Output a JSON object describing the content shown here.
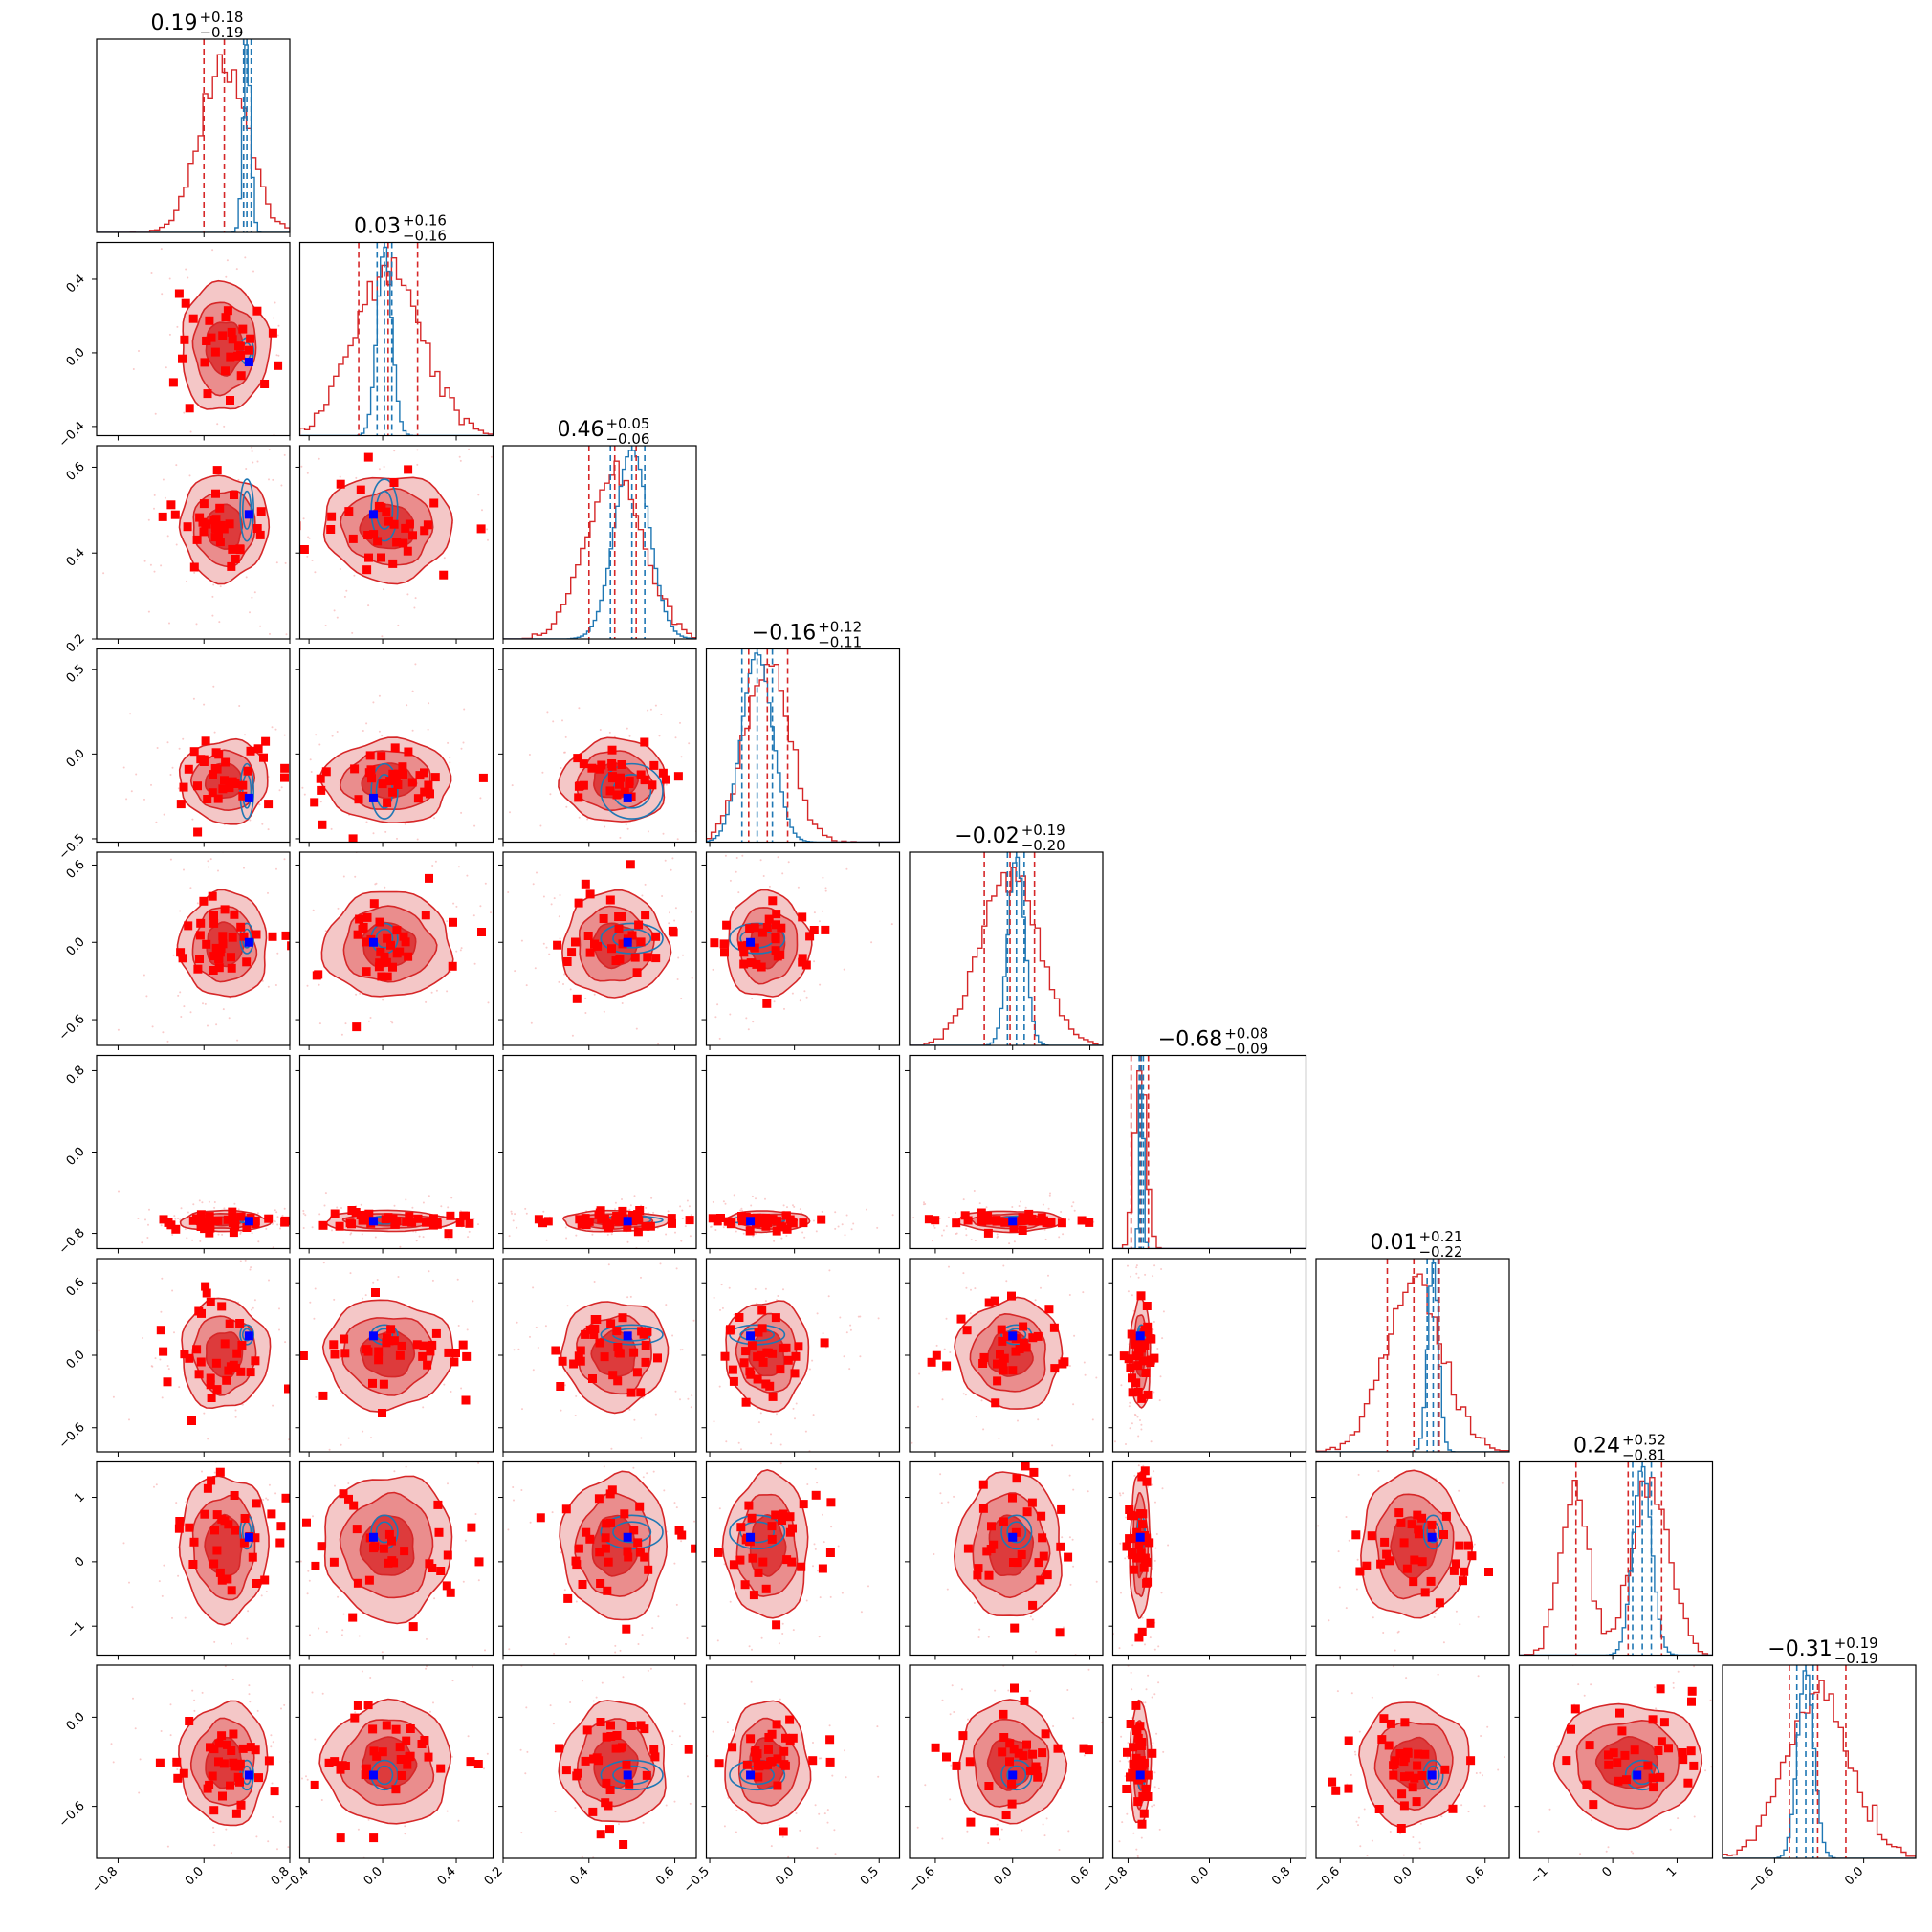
{
  "colors": {
    "primary": "#d62728",
    "primary_fill_outer": "#f4c7c7",
    "primary_fill_mid": "#ea8d8d",
    "primary_fill_inner": "#dd3b3c",
    "comparison": "#1f77b4",
    "truth": "#0000ff",
    "samples": "#ff0000"
  },
  "chart_data": {
    "type": "corner",
    "n_params": 9,
    "titles": [
      {
        "median": "0.19",
        "plus": "+0.18",
        "minus": "−0.19"
      },
      {
        "median": "0.03",
        "plus": "+0.16",
        "minus": "−0.16"
      },
      {
        "median": "0.46",
        "plus": "+0.05",
        "minus": "−0.06"
      },
      {
        "median": "−0.16",
        "plus": "+0.12",
        "minus": "−0.11"
      },
      {
        "median": "−0.02",
        "plus": "+0.19",
        "minus": "−0.20"
      },
      {
        "median": "−0.68",
        "plus": "+0.08",
        "minus": "−0.09"
      },
      {
        "median": "0.01",
        "plus": "+0.21",
        "minus": "−0.22"
      },
      {
        "median": "0.24",
        "plus": "+0.52",
        "minus": "−0.81"
      },
      {
        "median": "−0.31",
        "plus": "+0.19",
        "minus": "−0.19"
      }
    ],
    "ranges": [
      [
        -1.0,
        0.8
      ],
      [
        -0.45,
        0.6
      ],
      [
        0.2,
        0.65
      ],
      [
        -0.52,
        0.62
      ],
      [
        -0.8,
        0.7
      ],
      [
        -0.95,
        0.95
      ],
      [
        -0.8,
        0.8
      ],
      [
        -1.45,
        1.55
      ],
      [
        -0.95,
        0.35
      ]
    ],
    "x_ticks": [
      [
        "−0.8",
        "0.0",
        "0.8"
      ],
      [
        "−0.4",
        "0.0",
        "0.4"
      ],
      [
        "0.2",
        "0.4",
        "0.6"
      ],
      [
        "−0.5",
        "0.0",
        "0.5"
      ],
      [
        "−0.6",
        "0.0",
        "0.6"
      ],
      [
        "−0.8",
        "0.0",
        "0.8"
      ],
      [
        "−0.6",
        "0.0",
        "0.6"
      ],
      [
        "−1",
        "0",
        "1"
      ],
      [
        "−0.6",
        "0.0"
      ]
    ],
    "x_tick_values": [
      [
        -0.8,
        0.0,
        0.8
      ],
      [
        -0.4,
        0.0,
        0.4
      ],
      [
        0.2,
        0.4,
        0.6
      ],
      [
        -0.5,
        0.0,
        0.5
      ],
      [
        -0.6,
        0.0,
        0.6
      ],
      [
        -0.8,
        0.0,
        0.8
      ],
      [
        -0.6,
        0.0,
        0.6
      ],
      [
        -1,
        0,
        1
      ],
      [
        -0.6,
        0.0
      ]
    ],
    "y_ticks": [
      null,
      [
        "−0.4",
        "0.0",
        "0.4"
      ],
      [
        "0.2",
        "0.4",
        "0.6"
      ],
      [
        "−0.5",
        "0.0",
        "0.5"
      ],
      [
        "−0.6",
        "0.0",
        "0.6"
      ],
      [
        "−0.8",
        "0.0",
        "0.8"
      ],
      [
        "−0.6",
        "0.0",
        "0.6"
      ],
      [
        "−1",
        "0",
        "1"
      ],
      [
        "−0.6",
        "0.0"
      ]
    ],
    "y_tick_values": [
      null,
      [
        -0.4,
        0.0,
        0.4
      ],
      [
        0.2,
        0.4,
        0.6
      ],
      [
        -0.5,
        0.0,
        0.5
      ],
      [
        -0.6,
        0.0,
        0.6
      ],
      [
        -0.8,
        0.0,
        0.8
      ],
      [
        -0.6,
        0.0,
        0.6
      ],
      [
        -1,
        0,
        1
      ],
      [
        -0.6,
        0.0
      ]
    ],
    "primary_posterior": {
      "median": [
        0.19,
        0.03,
        0.46,
        -0.16,
        -0.02,
        -0.68,
        0.01,
        0.24,
        -0.31
      ],
      "q16": [
        0.0,
        -0.13,
        0.4,
        -0.27,
        -0.22,
        -0.77,
        -0.21,
        -0.57,
        -0.5
      ],
      "q84": [
        0.37,
        0.19,
        0.51,
        -0.04,
        0.17,
        -0.6,
        0.22,
        0.76,
        -0.12
      ],
      "sigma": [
        0.2,
        0.17,
        0.06,
        0.12,
        0.2,
        0.05,
        0.22,
        0.55,
        0.2
      ]
    },
    "comparison_posterior": {
      "median": [
        0.4,
        0.01,
        0.5,
        -0.22,
        0.03,
        -0.67,
        0.17,
        0.46,
        -0.39
      ],
      "q16": [
        0.37,
        -0.03,
        0.45,
        -0.31,
        -0.04,
        -0.69,
        0.12,
        0.31,
        -0.45
      ],
      "q84": [
        0.44,
        0.05,
        0.53,
        -0.13,
        0.09,
        -0.65,
        0.21,
        0.6,
        -0.34
      ]
    },
    "truth_values": [
      0.42,
      -0.05,
      0.49,
      -0.26,
      0.0,
      -0.68,
      0.16,
      0.38,
      -0.39
    ]
  }
}
